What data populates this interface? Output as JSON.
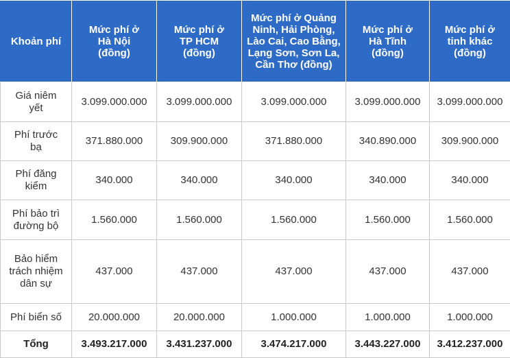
{
  "headers": [
    "Khoản phí",
    "Mức phí ở Hà Nội (đồng)",
    "Mức phí ở TP HCM (đồng)",
    "Mức phí ở Quảng Ninh, Hải Phòng, Lào Cai, Cao Bằng, Lạng Sơn, Sơn La, Cần Thơ (đồng)",
    "Mức phí ở Hà Tĩnh (đồng)",
    "Mức phí ở tỉnh khác (đồng)"
  ],
  "rows": [
    {
      "label": "Giá niêm yết",
      "values": [
        "3.099.000.000",
        "3.099.000.000",
        "3.099.000.000",
        "3.099.000.000",
        "3.099.000.000"
      ]
    },
    {
      "label": "Phí trước bạ",
      "values": [
        "371.880.000",
        "309.900.000",
        "371.880.000",
        "340.890.000",
        "309.900.000"
      ]
    },
    {
      "label": "Phí đăng kiểm",
      "values": [
        "340.000",
        "340.000",
        "340.000",
        "340.000",
        "340.000"
      ]
    },
    {
      "label": "Phí bảo trì đường bộ",
      "values": [
        "1.560.000",
        "1.560.000",
        "1.560.000",
        "1.560.000",
        "1.560.000"
      ]
    },
    {
      "label": "Bảo hiểm trách nhiệm dân sự",
      "values": [
        "437.000",
        "437.000",
        "437.000",
        "437.000",
        "437.000"
      ]
    },
    {
      "label": "Phí biển số",
      "values": [
        "20.000.000",
        "20.000.000",
        "1.000.000",
        "1.000.000",
        "1.000.000"
      ]
    }
  ],
  "total": {
    "label": "Tổng",
    "values": [
      "3.493.217.000",
      "3.431.237.000",
      "3.474.217.000",
      "3.443.227.000",
      "3.412.237.000"
    ]
  },
  "colors": {
    "header_bg": "#2e6bc6",
    "header_text": "#ffffff",
    "border": "#c9c9c9"
  }
}
